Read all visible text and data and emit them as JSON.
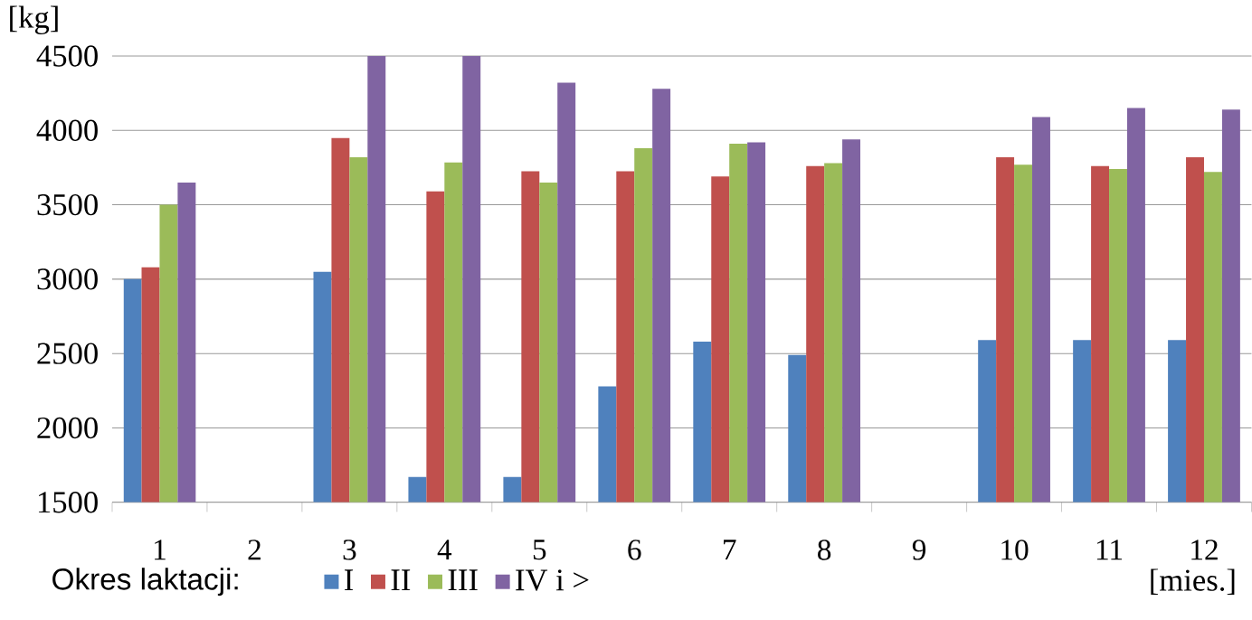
{
  "chart_data": {
    "type": "bar",
    "ylabel": "[kg]",
    "xlabel": "[mies.]",
    "legend_title": "Okres laktacji:",
    "categories": [
      "1",
      "2",
      "3",
      "4",
      "5",
      "6",
      "7",
      "8",
      "9",
      "10",
      "11",
      "12"
    ],
    "series": [
      {
        "name": "I",
        "color": "#4f81bd",
        "values": [
          3000,
          null,
          3050,
          1670,
          1670,
          2280,
          2580,
          2490,
          null,
          2590,
          2590,
          2590
        ]
      },
      {
        "name": "II",
        "color": "#c0504d",
        "values": [
          3080,
          null,
          3950,
          3590,
          3725,
          3725,
          3690,
          3760,
          null,
          3820,
          3760,
          3820
        ]
      },
      {
        "name": "III",
        "color": "#9bbb59",
        "values": [
          3500,
          null,
          3820,
          3785,
          3650,
          3880,
          3910,
          3780,
          null,
          3770,
          3740,
          3720
        ]
      },
      {
        "name": "IV i >",
        "color": "#8064a2",
        "values": [
          3650,
          null,
          4500,
          4500,
          4320,
          4280,
          3920,
          3940,
          null,
          4090,
          4150,
          4140
        ]
      }
    ],
    "ylim": [
      1500,
      4500
    ],
    "yticks": [
      1500,
      2000,
      2500,
      3000,
      3500,
      4000,
      4500
    ],
    "grid": "y",
    "legend": "bottom"
  }
}
